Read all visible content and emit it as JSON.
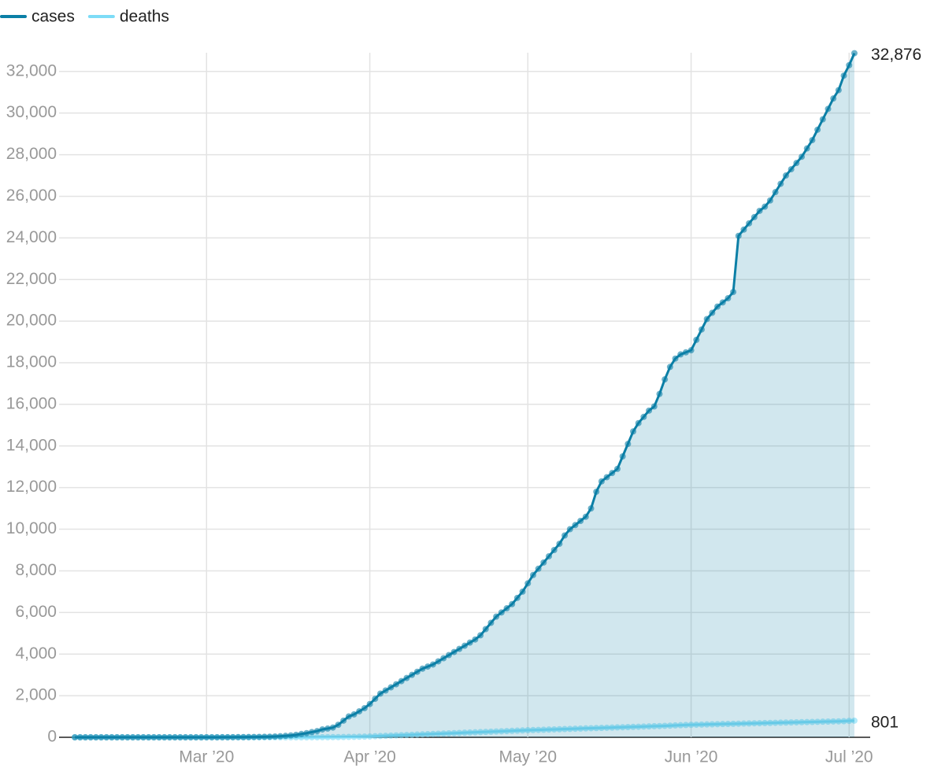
{
  "chart_data": {
    "type": "line",
    "x": [
      "2020-02-05",
      "2020-02-06",
      "2020-02-07",
      "2020-02-08",
      "2020-02-09",
      "2020-02-10",
      "2020-02-11",
      "2020-02-12",
      "2020-02-13",
      "2020-02-14",
      "2020-02-15",
      "2020-02-16",
      "2020-02-17",
      "2020-02-18",
      "2020-02-19",
      "2020-02-20",
      "2020-02-21",
      "2020-02-22",
      "2020-02-23",
      "2020-02-24",
      "2020-02-25",
      "2020-02-26",
      "2020-02-27",
      "2020-02-28",
      "2020-02-29",
      "2020-03-01",
      "2020-03-02",
      "2020-03-03",
      "2020-03-04",
      "2020-03-05",
      "2020-03-06",
      "2020-03-07",
      "2020-03-08",
      "2020-03-09",
      "2020-03-10",
      "2020-03-11",
      "2020-03-12",
      "2020-03-13",
      "2020-03-14",
      "2020-03-15",
      "2020-03-16",
      "2020-03-17",
      "2020-03-18",
      "2020-03-19",
      "2020-03-20",
      "2020-03-21",
      "2020-03-22",
      "2020-03-23",
      "2020-03-24",
      "2020-03-25",
      "2020-03-26",
      "2020-03-27",
      "2020-03-28",
      "2020-03-29",
      "2020-03-30",
      "2020-03-31",
      "2020-04-01",
      "2020-04-02",
      "2020-04-03",
      "2020-04-04",
      "2020-04-05",
      "2020-04-06",
      "2020-04-07",
      "2020-04-08",
      "2020-04-09",
      "2020-04-10",
      "2020-04-11",
      "2020-04-12",
      "2020-04-13",
      "2020-04-14",
      "2020-04-15",
      "2020-04-16",
      "2020-04-17",
      "2020-04-18",
      "2020-04-19",
      "2020-04-20",
      "2020-04-21",
      "2020-04-22",
      "2020-04-23",
      "2020-04-24",
      "2020-04-25",
      "2020-04-26",
      "2020-04-27",
      "2020-04-28",
      "2020-04-29",
      "2020-04-30",
      "2020-05-01",
      "2020-05-02",
      "2020-05-03",
      "2020-05-04",
      "2020-05-05",
      "2020-05-06",
      "2020-05-07",
      "2020-05-08",
      "2020-05-09",
      "2020-05-10",
      "2020-05-11",
      "2020-05-12",
      "2020-05-13",
      "2020-05-14",
      "2020-05-15",
      "2020-05-16",
      "2020-05-17",
      "2020-05-18",
      "2020-05-19",
      "2020-05-20",
      "2020-05-21",
      "2020-05-22",
      "2020-05-23",
      "2020-05-24",
      "2020-05-25",
      "2020-05-26",
      "2020-05-27",
      "2020-05-28",
      "2020-05-29",
      "2020-05-30",
      "2020-05-31",
      "2020-06-01",
      "2020-06-02",
      "2020-06-03",
      "2020-06-04",
      "2020-06-05",
      "2020-06-06",
      "2020-06-07",
      "2020-06-08",
      "2020-06-09",
      "2020-06-10",
      "2020-06-11",
      "2020-06-12",
      "2020-06-13",
      "2020-06-14",
      "2020-06-15",
      "2020-06-16",
      "2020-06-17",
      "2020-06-18",
      "2020-06-19",
      "2020-06-20",
      "2020-06-21",
      "2020-06-22",
      "2020-06-23",
      "2020-06-24",
      "2020-06-25",
      "2020-06-26",
      "2020-06-27",
      "2020-06-28",
      "2020-06-29",
      "2020-06-30",
      "2020-07-01",
      "2020-07-02"
    ],
    "series": [
      {
        "name": "cases",
        "color": "#0b7fa6",
        "area": true,
        "values": [
          0,
          0,
          0,
          0,
          0,
          0,
          0,
          0,
          0,
          0,
          0,
          0,
          0,
          0,
          0,
          0,
          0,
          0,
          0,
          0,
          0,
          0,
          0,
          0,
          0,
          1,
          1,
          2,
          3,
          4,
          6,
          8,
          10,
          12,
          15,
          20,
          25,
          30,
          40,
          50,
          70,
          90,
          120,
          160,
          200,
          250,
          300,
          380,
          420,
          470,
          600,
          800,
          1000,
          1100,
          1250,
          1400,
          1600,
          1850,
          2100,
          2250,
          2400,
          2550,
          2700,
          2850,
          3000,
          3150,
          3300,
          3400,
          3500,
          3650,
          3800,
          3950,
          4100,
          4250,
          4400,
          4550,
          4700,
          4900,
          5200,
          5500,
          5800,
          6000,
          6200,
          6400,
          6700,
          7000,
          7400,
          7800,
          8100,
          8400,
          8700,
          9000,
          9300,
          9700,
          10000,
          10200,
          10400,
          10600,
          11000,
          11800,
          12300,
          12500,
          12700,
          12900,
          13500,
          14100,
          14700,
          15100,
          15400,
          15700,
          15900,
          16500,
          17200,
          17800,
          18200,
          18400,
          18500,
          18600,
          19100,
          19600,
          20100,
          20400,
          20700,
          20900,
          21100,
          21400,
          24100,
          24400,
          24700,
          25000,
          25300,
          25500,
          25800,
          26200,
          26600,
          27000,
          27300,
          27600,
          27900,
          28300,
          28700,
          29200,
          29700,
          30200,
          30700,
          31100,
          31800,
          32300,
          32876
        ],
        "value_labels": [
          null,
          null,
          null,
          null,
          null,
          null,
          null,
          null,
          null,
          null,
          null,
          null,
          null,
          null,
          null,
          null,
          null,
          null,
          null,
          null,
          null,
          null,
          null,
          null,
          null,
          null,
          null,
          null,
          null,
          null,
          null,
          null,
          null,
          null,
          null,
          null,
          null,
          null,
          null,
          null,
          null,
          null,
          null,
          null,
          null,
          null,
          null,
          null,
          null,
          null,
          null,
          null,
          null,
          null,
          null,
          null,
          null,
          null,
          null,
          null,
          null,
          null,
          null,
          null,
          null,
          null,
          null,
          null,
          null,
          null,
          null,
          null,
          null,
          null,
          null,
          null,
          null,
          null,
          null,
          null,
          null,
          null,
          null,
          null,
          null,
          null,
          null,
          null,
          null,
          null,
          null,
          null,
          null,
          null,
          null,
          null,
          null,
          null,
          null,
          null,
          null,
          null,
          null,
          null,
          null,
          null,
          null,
          null,
          null,
          null,
          null,
          null,
          null,
          null,
          null,
          null,
          null,
          null,
          null,
          null,
          null,
          null,
          null,
          null,
          null,
          null,
          null,
          null,
          null,
          null,
          null,
          null,
          null,
          null,
          null,
          null,
          null,
          null,
          null,
          null,
          null,
          null,
          null,
          null,
          null,
          null,
          null,
          null,
          "32,876"
        ]
      },
      {
        "name": "deaths",
        "color": "#7ddcf7",
        "area": false,
        "values": [
          0,
          0,
          0,
          0,
          0,
          0,
          0,
          0,
          0,
          0,
          0,
          0,
          0,
          0,
          0,
          0,
          0,
          0,
          0,
          0,
          0,
          0,
          0,
          0,
          0,
          0,
          0,
          0,
          0,
          0,
          0,
          0,
          0,
          0,
          0,
          0,
          0,
          0,
          0,
          0,
          0,
          0,
          0,
          0,
          0,
          1,
          2,
          3,
          5,
          8,
          10,
          13,
          17,
          21,
          26,
          31,
          40,
          50,
          60,
          70,
          80,
          90,
          100,
          110,
          120,
          130,
          140,
          150,
          160,
          170,
          180,
          190,
          200,
          210,
          220,
          230,
          240,
          250,
          260,
          270,
          280,
          290,
          300,
          310,
          320,
          330,
          340,
          348,
          356,
          364,
          372,
          380,
          388,
          396,
          404,
          412,
          420,
          428,
          436,
          444,
          452,
          460,
          468,
          476,
          484,
          492,
          500,
          508,
          516,
          524,
          532,
          540,
          550,
          560,
          570,
          580,
          590,
          600,
          606,
          612,
          618,
          624,
          630,
          636,
          642,
          648,
          654,
          660,
          666,
          672,
          678,
          684,
          690,
          696,
          702,
          708,
          714,
          720,
          726,
          732,
          738,
          744,
          750,
          756,
          762,
          768,
          774,
          790,
          801
        ]
      }
    ],
    "xlim": [
      "2020-02-02",
      "2020-07-05"
    ],
    "xticks": [
      {
        "value": "2020-03-01",
        "label": "Mar ’20"
      },
      {
        "value": "2020-04-01",
        "label": "Apr ’20"
      },
      {
        "value": "2020-05-01",
        "label": "May ’20"
      },
      {
        "value": "2020-06-01",
        "label": "Jun ’20"
      },
      {
        "value": "2020-07-01",
        "label": "Jul ’20"
      }
    ],
    "ylim": [
      0,
      32900
    ],
    "yticks": [
      0,
      {
        "value": 2000,
        "label": "2,000"
      },
      {
        "value": 4000,
        "label": "4,000"
      },
      {
        "value": 6000,
        "label": "6,000"
      },
      {
        "value": 8000,
        "label": "8,000"
      },
      {
        "value": 10000,
        "label": "10,000"
      },
      {
        "value": 12000,
        "label": "12,000"
      },
      {
        "value": 14000,
        "label": "14,000"
      },
      {
        "value": 16000,
        "label": "16,000"
      },
      {
        "value": 18000,
        "label": "18,000"
      },
      {
        "value": 20000,
        "label": "20,000"
      },
      {
        "value": 22000,
        "label": "22,000"
      },
      {
        "value": 24000,
        "label": "24,000"
      },
      {
        "value": 26000,
        "label": "26,000"
      },
      {
        "value": 28000,
        "label": "28,000"
      },
      {
        "value": 30000,
        "label": "30,000"
      },
      {
        "value": 32000,
        "label": "32,000"
      }
    ],
    "grid": true,
    "legend": "top-left"
  }
}
